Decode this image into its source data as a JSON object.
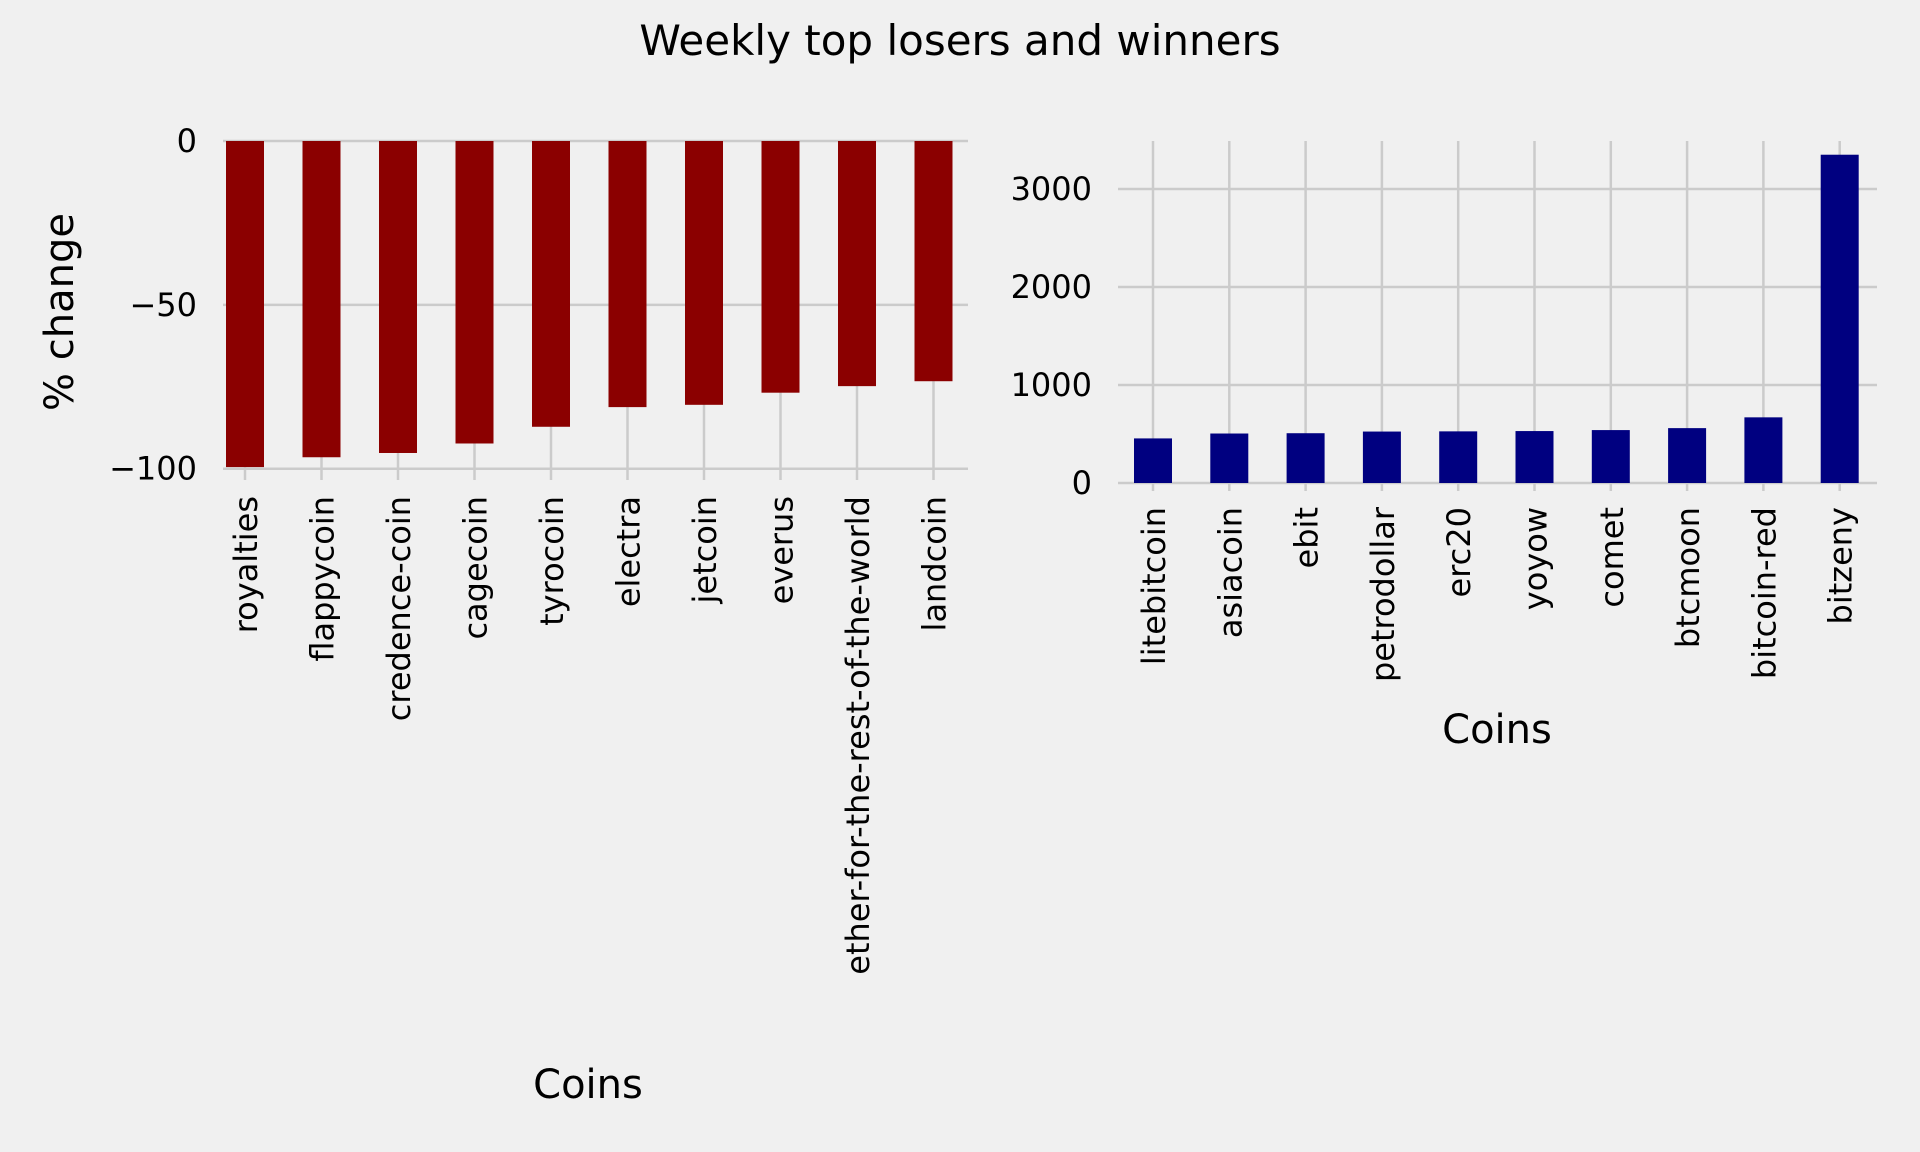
{
  "title": "Weekly top losers and winners",
  "chart_data": [
    {
      "type": "bar",
      "name": "losers",
      "color": "#8b0000",
      "categories": [
        "royalties",
        "flappycoin",
        "credence-coin",
        "cagecoin",
        "tyrocoin",
        "electra",
        "jetcoin",
        "everus",
        "ether-for-the-rest-of-the-world",
        "landcoin"
      ],
      "values": [
        -99.5,
        -96.5,
        -95.2,
        -92.3,
        -87.2,
        -81.2,
        -80.5,
        -76.8,
        -74.8,
        -73.3
      ],
      "xlabel": "Coins",
      "ylabel": "% change",
      "ylim": [
        -101,
        0
      ],
      "yticks": [
        0,
        -50,
        -100
      ],
      "ytick_labels": [
        "0",
        "−50",
        "−100"
      ],
      "grid": true
    },
    {
      "type": "bar",
      "name": "winners",
      "color": "#000080",
      "categories": [
        "litebitcoin",
        "asiacoin",
        "ebit",
        "petrodollar",
        "erc20",
        "yoyow",
        "comet",
        "btcmoon",
        "bitcoin-red",
        "bitzeny"
      ],
      "values": [
        455,
        505,
        508,
        525,
        527,
        530,
        540,
        560,
        670,
        3350
      ],
      "xlabel": "Coins",
      "ylabel": "",
      "ylim": [
        0,
        3490
      ],
      "yticks": [
        0,
        1000,
        2000,
        3000
      ],
      "ytick_labels": [
        "0",
        "1000",
        "2000",
        "3000"
      ],
      "grid": true
    }
  ]
}
